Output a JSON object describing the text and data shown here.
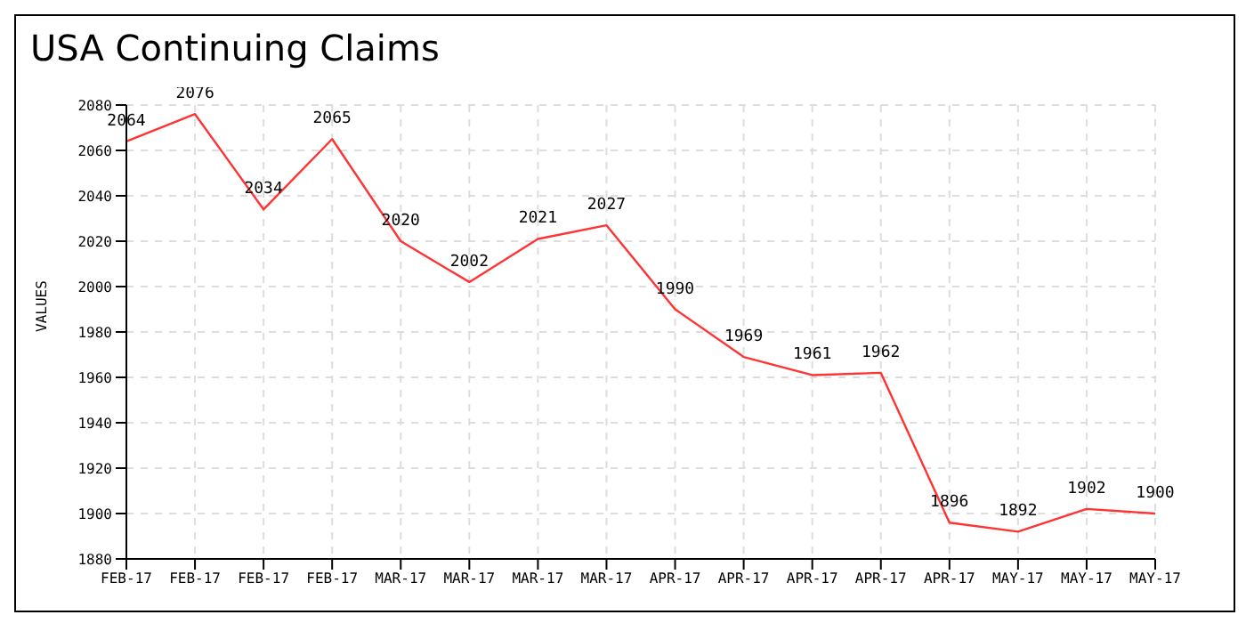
{
  "chart_data": {
    "type": "line",
    "title": "USA Continuing Claims",
    "ylabel": "VALUES",
    "categories": [
      "FEB-17",
      "FEB-17",
      "FEB-17",
      "FEB-17",
      "MAR-17",
      "MAR-17",
      "MAR-17",
      "MAR-17",
      "APR-17",
      "APR-17",
      "APR-17",
      "APR-17",
      "APR-17",
      "MAY-17",
      "MAY-17",
      "MAY-17"
    ],
    "series": [
      {
        "color": "#ff3333",
        "values": [
          2064,
          2076,
          2034,
          2065,
          2020,
          2002,
          2021,
          2027,
          1990,
          1969,
          1961,
          1962,
          1896,
          1892,
          1902,
          1900
        ]
      }
    ],
    "ylim": [
      1880,
      2080
    ],
    "yticks": [
      1880,
      1900,
      1920,
      1940,
      1960,
      1980,
      2000,
      2020,
      2040,
      2060,
      2080
    ],
    "grid": true,
    "data_labels": true,
    "marker": "none",
    "line_style": "solid",
    "legend": false
  }
}
